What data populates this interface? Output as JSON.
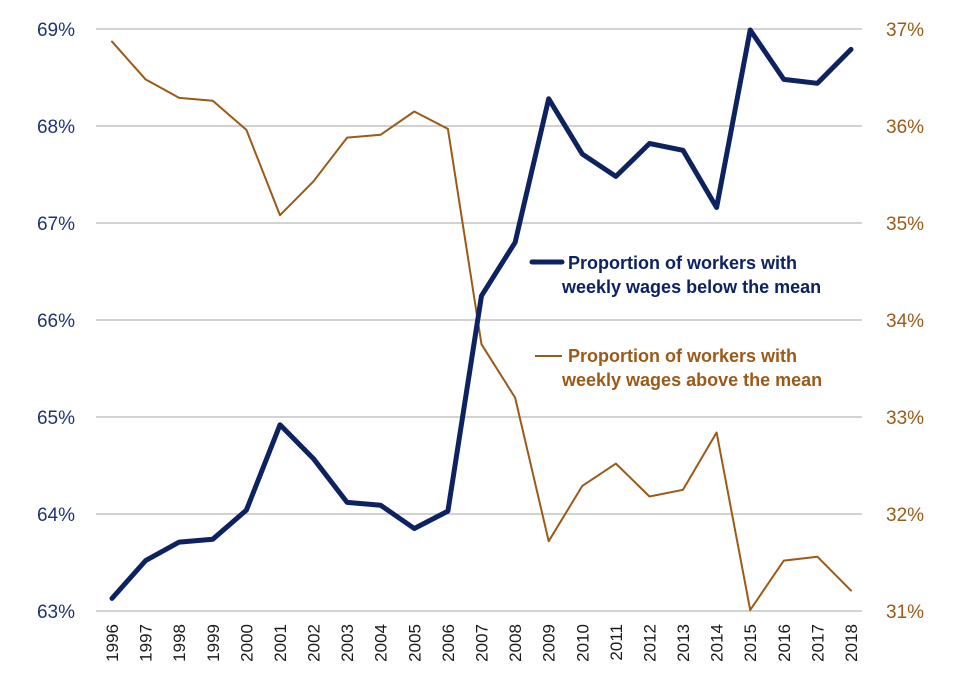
{
  "colors": {
    "below": "#0d2260",
    "above": "#9b5a18",
    "left_axis_text": "#1f3470",
    "right_axis_text": "#9b5a18",
    "grid": "#a6a6a6"
  },
  "chart_data": {
    "type": "line",
    "title": "",
    "xlabel": "",
    "ylabel": "",
    "grid": true,
    "legend_position": "center-right",
    "categories": [
      "1996",
      "1997",
      "1998",
      "1999",
      "2000",
      "2001",
      "2002",
      "2003",
      "2004",
      "2005",
      "2006",
      "2007",
      "2008",
      "2009",
      "2010",
      "2011",
      "2012",
      "2013",
      "2014",
      "2015",
      "2016",
      "2017",
      "2018"
    ],
    "y_left": {
      "range": [
        63,
        69
      ],
      "ticks": [
        63,
        64,
        65,
        66,
        67,
        68,
        69
      ],
      "tick_labels": [
        "63%",
        "64%",
        "65%",
        "66%",
        "67%",
        "68%",
        "69%"
      ]
    },
    "y_right": {
      "range": [
        31,
        37
      ],
      "ticks": [
        31,
        32,
        33,
        34,
        35,
        36,
        37
      ],
      "tick_labels": [
        "31%",
        "32%",
        "33%",
        "34%",
        "35%",
        "36%",
        "37%"
      ]
    },
    "series": [
      {
        "name_line1": "Proportion of workers with",
        "name_line2": "weekly wages below the mean",
        "axis": "left",
        "unit": "%",
        "values": [
          63.13,
          63.52,
          63.71,
          63.74,
          64.04,
          64.92,
          64.57,
          64.12,
          64.09,
          63.85,
          64.03,
          66.25,
          66.8,
          68.28,
          67.71,
          67.48,
          67.82,
          67.75,
          67.16,
          68.99,
          68.48,
          68.44,
          68.79
        ]
      },
      {
        "name_line1": "Proportion of workers with",
        "name_line2": "weekly wages above the mean",
        "axis": "right",
        "unit": "%",
        "values": [
          36.87,
          36.48,
          36.29,
          36.26,
          35.96,
          35.08,
          35.43,
          35.88,
          35.91,
          36.15,
          35.97,
          33.75,
          33.2,
          31.72,
          32.29,
          32.52,
          32.18,
          32.25,
          32.84,
          31.01,
          31.52,
          31.56,
          31.21
        ]
      }
    ]
  }
}
